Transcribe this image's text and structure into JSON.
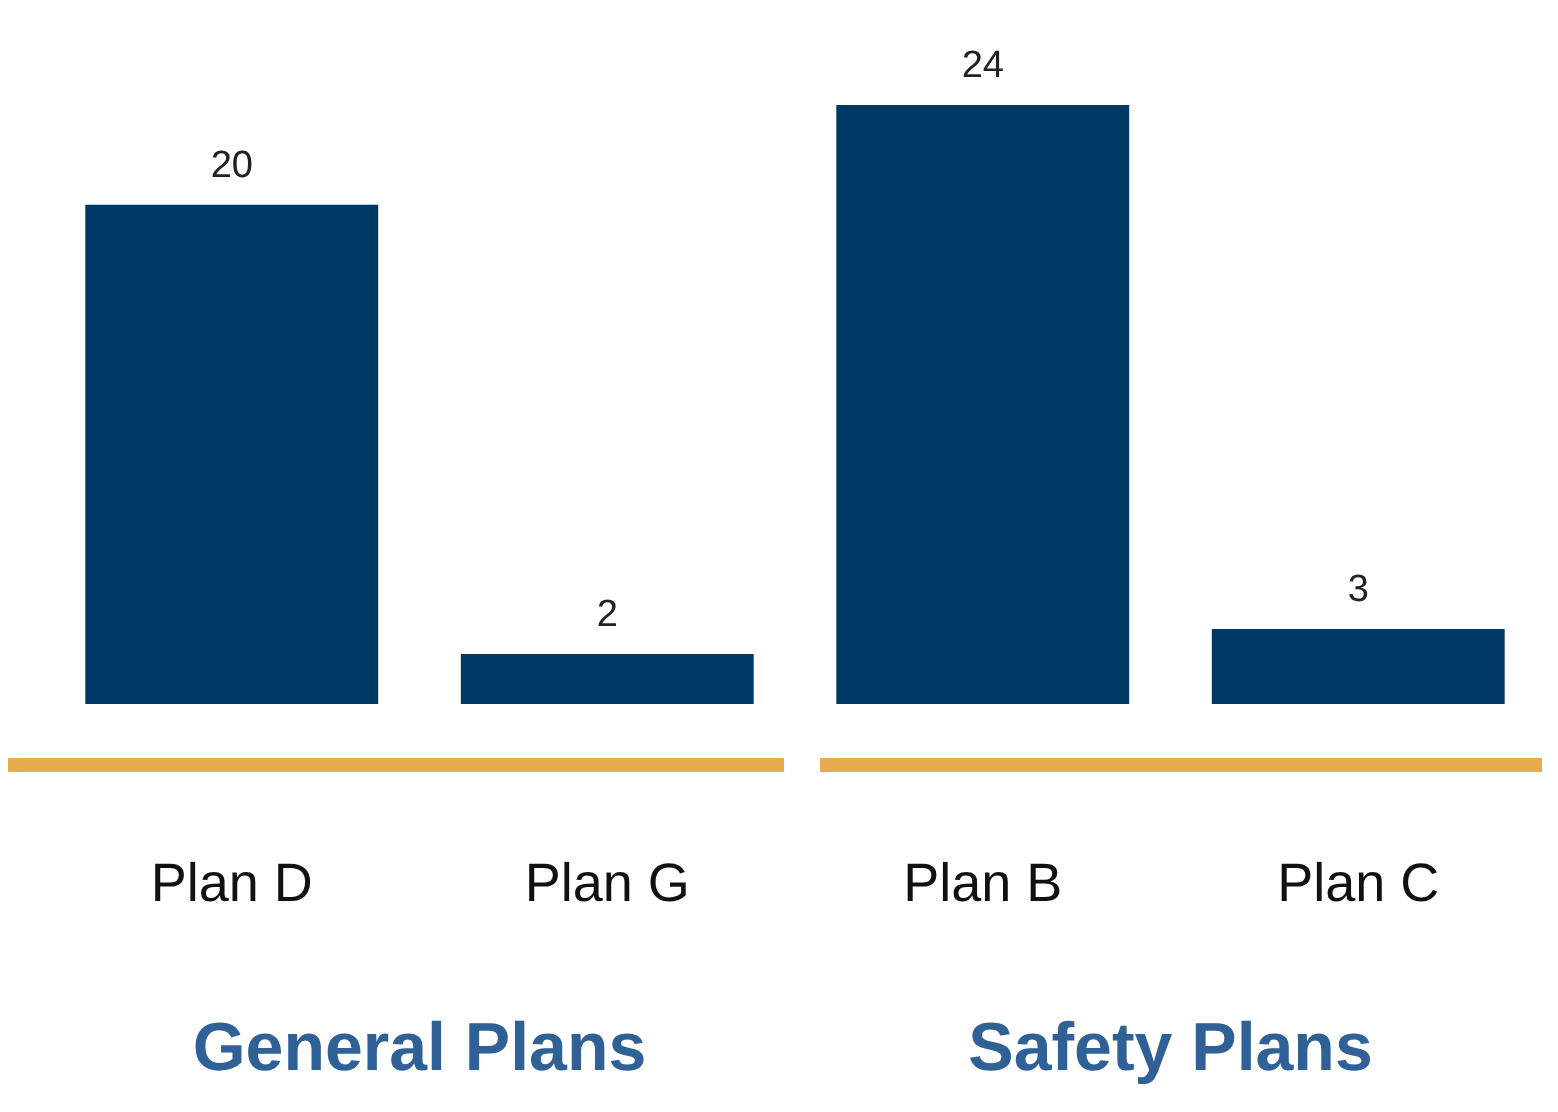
{
  "chart_data": {
    "type": "bar",
    "categories": [
      "Plan D",
      "Plan G",
      "Plan B",
      "Plan C"
    ],
    "values": [
      20,
      2,
      24,
      3
    ],
    "color": "#003865",
    "data_labels": true,
    "annotations": [
      "General Plans",
      "Safety Plans"
    ]
  }
}
